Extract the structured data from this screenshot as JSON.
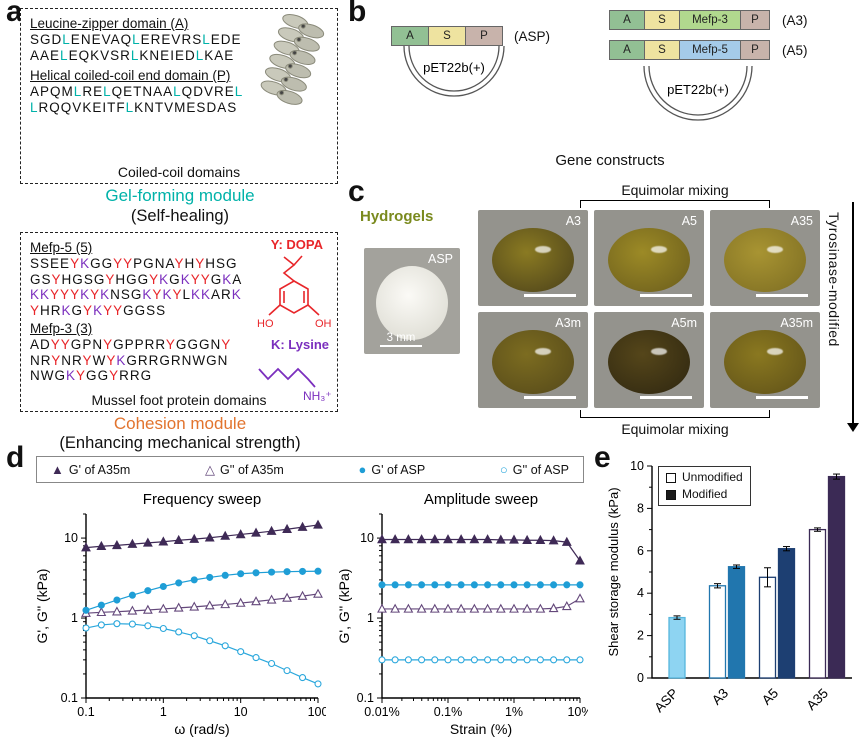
{
  "panel_a": {
    "letter": "a",
    "coiled_box": {
      "domain1_title": "Leucine-zipper domain (A)",
      "domain1_seq": [
        "SGDLENEVAQLEREVRSLEDE",
        "AAELEQKVSRLKNEIEDLKAE"
      ],
      "domain2_title": "Helical coiled-coil end domain (P)",
      "domain2_seq": [
        "APQMLRELQETNAALQDVREL",
        "LRQQVKEITFLKNTVMESDAS"
      ],
      "caption": "Coiled-coil domains"
    },
    "coiled_highlights": {
      "L": "#00b2a9"
    },
    "module1_title": "Gel-forming module",
    "module1_color": "#00b2a9",
    "module1_sub": "(Self-healing)",
    "mussel_box": {
      "mefp5_title": "Mefp-5 (5)",
      "mefp5_seq": [
        "SSEEYKGGYYPGNAYHYHSG",
        "GSYHGSGYHGGYKGKYYGKA",
        "KKYYYKYKNSGKYKYLKKARK",
        "YHRKGYKYYGGSS"
      ],
      "dopa_label": "Y: DOPA",
      "dopa_oh_left": "HO",
      "dopa_oh_right": "OH",
      "mefp3_title": "Mefp-3 (3)",
      "mefp3_seq": [
        "ADYYGPNYGPPRRYGGGNY",
        "NRYNRYWYKGRRGRNWGN",
        "NWGKYGGYRRG"
      ],
      "lysine_label": "K:  Lysine",
      "lysine_formula": "NH₃⁺",
      "caption": "Mussel foot protein domains"
    },
    "mussel_highlights": {
      "Y": "#e8262a",
      "K": "#7b2fbe"
    },
    "module2_title": "Cohesion module",
    "module2_color": "#e2742e",
    "module2_sub": "(Enhancing mechanical strength)"
  },
  "panel_b": {
    "letter": "b",
    "caption": "Gene constructs",
    "asp": {
      "blocks": [
        {
          "text": "A",
          "color": "#92c094",
          "w": 38
        },
        {
          "text": "S",
          "color": "#eee3a0",
          "w": 38
        },
        {
          "text": "P",
          "color": "#c8b3ab",
          "w": 38
        }
      ],
      "name": "(ASP)",
      "plasmid": "pET22b(+)"
    },
    "a3": {
      "blocks": [
        {
          "text": "A",
          "color": "#92c094",
          "w": 36
        },
        {
          "text": "S",
          "color": "#eee3a0",
          "w": 36
        },
        {
          "text": "Mefp-3",
          "color": "#b1d88e",
          "w": 62
        },
        {
          "text": "P",
          "color": "#c8b3ab",
          "w": 30
        }
      ],
      "name": "(A3)"
    },
    "a5": {
      "blocks": [
        {
          "text": "A",
          "color": "#92c094",
          "w": 36
        },
        {
          "text": "S",
          "color": "#eee3a0",
          "w": 36
        },
        {
          "text": "Mefp-5",
          "color": "#a5cbe9",
          "w": 62
        },
        {
          "text": "P",
          "color": "#c8b3ab",
          "w": 30
        }
      ],
      "name": "(A5)"
    },
    "plasmid2": "pET22b(+)"
  },
  "panel_c": {
    "letter": "c",
    "title": "Hydrogels",
    "title_color": "#7a8a1e",
    "equimolar_top": "Equimolar mixing",
    "equimolar_bottom": "Equimolar mixing",
    "tyrosinase_label": "Tyrosinase-modified",
    "asp_photo": {
      "label": "ASP",
      "scale": "3 mm"
    },
    "gels": [
      {
        "label": "A3",
        "c1": "#8a7a22",
        "c2": "#4a401a"
      },
      {
        "label": "A5",
        "c1": "#9c8a26",
        "c2": "#6a5c1c"
      },
      {
        "label": "A35",
        "c1": "#a89432",
        "c2": "#7c6c22"
      },
      {
        "label": "A3m",
        "c1": "#7c6c20",
        "c2": "#54481a"
      },
      {
        "label": "A5m",
        "c1": "#55461a",
        "c2": "#2e2610"
      },
      {
        "label": "A35m",
        "c1": "#8a7820",
        "c2": "#5e5018"
      }
    ]
  },
  "panel_d": {
    "letter": "d",
    "legend": [
      {
        "label": "G' of A35m",
        "marker": "triangle-filled",
        "color": "#3f2a56"
      },
      {
        "label": "G'' of A35m",
        "marker": "triangle-open",
        "color": "#64487b"
      },
      {
        "label": "G' of ASP",
        "marker": "circle-filled",
        "color": "#1f9ed6"
      },
      {
        "label": "G'' of ASP",
        "marker": "circle-open",
        "color": "#2aa7dc"
      }
    ]
  },
  "panel_e": {
    "letter": "e",
    "legend": [
      {
        "label": "Unmodified",
        "filled": false
      },
      {
        "label": "Modified",
        "filled": true
      }
    ]
  },
  "chart_data": [
    {
      "id": "frequency_sweep",
      "type": "line",
      "title": "Frequency sweep",
      "xlabel": "ω (rad/s)",
      "ylabel": "G', G'' (kPa)",
      "xscale": "log",
      "yscale": "log",
      "xlim": [
        0.1,
        100
      ],
      "ylim": [
        0.1,
        20
      ],
      "xticks": [
        {
          "v": 0.1,
          "t": "0.1"
        },
        {
          "v": 1,
          "t": "1"
        },
        {
          "v": 10,
          "t": "10"
        },
        {
          "v": 100,
          "t": "100"
        }
      ],
      "yticks": [
        {
          "v": 0.1,
          "t": "0.1"
        },
        {
          "v": 1,
          "t": "1"
        },
        {
          "v": 10,
          "t": "10"
        }
      ],
      "series": [
        {
          "name": "G' of A35m",
          "marker": "triangle-filled",
          "color": "#3f2a56",
          "x": [
            0.1,
            0.158,
            0.251,
            0.398,
            0.631,
            1,
            1.58,
            2.51,
            3.98,
            6.31,
            10,
            15.8,
            25.1,
            39.8,
            63.1,
            100
          ],
          "y": [
            7.6,
            7.9,
            8.1,
            8.4,
            8.7,
            9.0,
            9.4,
            9.7,
            10.1,
            10.6,
            11.1,
            11.6,
            12.2,
            12.9,
            13.7,
            14.6
          ]
        },
        {
          "name": "G'' of A35m",
          "marker": "triangle-open",
          "color": "#64487b",
          "x": [
            0.1,
            0.158,
            0.251,
            0.398,
            0.631,
            1,
            1.58,
            2.51,
            3.98,
            6.31,
            10,
            15.8,
            25.1,
            39.8,
            63.1,
            100
          ],
          "y": [
            1.15,
            1.18,
            1.2,
            1.23,
            1.26,
            1.3,
            1.34,
            1.38,
            1.43,
            1.48,
            1.54,
            1.61,
            1.69,
            1.78,
            1.88,
            2.0
          ]
        },
        {
          "name": "G' of ASP",
          "marker": "circle-filled",
          "color": "#1f9ed6",
          "x": [
            0.1,
            0.158,
            0.251,
            0.398,
            0.631,
            1,
            1.58,
            2.51,
            3.98,
            6.31,
            10,
            15.8,
            25.1,
            39.8,
            63.1,
            100
          ],
          "y": [
            1.25,
            1.45,
            1.68,
            1.93,
            2.2,
            2.48,
            2.75,
            3.0,
            3.22,
            3.42,
            3.58,
            3.68,
            3.75,
            3.8,
            3.83,
            3.85
          ]
        },
        {
          "name": "G'' of ASP",
          "marker": "circle-open",
          "color": "#2aa7dc",
          "x": [
            0.1,
            0.158,
            0.251,
            0.398,
            0.631,
            1,
            1.58,
            2.51,
            3.98,
            6.31,
            10,
            15.8,
            25.1,
            39.8,
            63.1,
            100
          ],
          "y": [
            0.75,
            0.82,
            0.85,
            0.84,
            0.8,
            0.74,
            0.67,
            0.6,
            0.52,
            0.45,
            0.38,
            0.32,
            0.27,
            0.22,
            0.18,
            0.15
          ]
        }
      ]
    },
    {
      "id": "amplitude_sweep",
      "type": "line",
      "title": "Amplitude sweep",
      "xlabel": "Strain (%)",
      "ylabel": "G', G'' (kPa)",
      "xscale": "log",
      "yscale": "log",
      "xlim": [
        0.01,
        10
      ],
      "ylim": [
        0.1,
        20
      ],
      "xticks": [
        {
          "v": 0.01,
          "t": "0.01%"
        },
        {
          "v": 0.1,
          "t": "0.1%"
        },
        {
          "v": 1,
          "t": "1%"
        },
        {
          "v": 10,
          "t": "10%"
        }
      ],
      "yticks": [
        {
          "v": 0.1,
          "t": "0.1"
        },
        {
          "v": 1,
          "t": "1"
        },
        {
          "v": 10,
          "t": "10"
        }
      ],
      "series": [
        {
          "name": "G' of A35m",
          "marker": "triangle-filled",
          "color": "#3f2a56",
          "x": [
            0.01,
            0.0158,
            0.0251,
            0.0398,
            0.0631,
            0.1,
            0.158,
            0.251,
            0.398,
            0.631,
            1,
            1.58,
            2.51,
            3.98,
            6.31,
            10
          ],
          "y": [
            9.6,
            9.6,
            9.6,
            9.6,
            9.6,
            9.6,
            9.6,
            9.6,
            9.6,
            9.5,
            9.5,
            9.4,
            9.4,
            9.3,
            8.9,
            5.2
          ]
        },
        {
          "name": "G'' of A35m",
          "marker": "triangle-open",
          "color": "#64487b",
          "x": [
            0.01,
            0.0158,
            0.0251,
            0.0398,
            0.0631,
            0.1,
            0.158,
            0.251,
            0.398,
            0.631,
            1,
            1.58,
            2.51,
            3.98,
            6.31,
            10
          ],
          "y": [
            1.3,
            1.3,
            1.3,
            1.3,
            1.3,
            1.3,
            1.3,
            1.3,
            1.3,
            1.3,
            1.3,
            1.3,
            1.3,
            1.32,
            1.4,
            1.75
          ]
        },
        {
          "name": "G' of ASP",
          "marker": "circle-filled",
          "color": "#1f9ed6",
          "x": [
            0.01,
            0.0158,
            0.0251,
            0.0398,
            0.0631,
            0.1,
            0.158,
            0.251,
            0.398,
            0.631,
            1,
            1.58,
            2.51,
            3.98,
            6.31,
            10
          ],
          "y": [
            2.6,
            2.6,
            2.6,
            2.6,
            2.6,
            2.6,
            2.6,
            2.6,
            2.6,
            2.6,
            2.6,
            2.6,
            2.6,
            2.6,
            2.6,
            2.6
          ]
        },
        {
          "name": "G'' of ASP",
          "marker": "circle-open",
          "color": "#2aa7dc",
          "x": [
            0.01,
            0.0158,
            0.0251,
            0.0398,
            0.0631,
            0.1,
            0.158,
            0.251,
            0.398,
            0.631,
            1,
            1.58,
            2.51,
            3.98,
            6.31,
            10
          ],
          "y": [
            0.3,
            0.3,
            0.3,
            0.3,
            0.3,
            0.3,
            0.3,
            0.3,
            0.3,
            0.3,
            0.3,
            0.3,
            0.3,
            0.3,
            0.3,
            0.3
          ]
        }
      ]
    },
    {
      "id": "storage_modulus_bars",
      "type": "bar",
      "ylabel": "Shear storage modulus (kPa)",
      "ylim": [
        0,
        10
      ],
      "yticks": [
        0,
        2,
        4,
        6,
        8,
        10
      ],
      "legend": [
        "Unmodified",
        "Modified"
      ],
      "categories": [
        "ASP",
        "A3",
        "A5",
        "A35"
      ],
      "groups": [
        {
          "category": "ASP",
          "bars": [
            {
              "series": "Unmodified",
              "value": 2.85,
              "error": 0.08,
              "fill": "#8ed4f2",
              "stroke": "#56b6dd"
            }
          ]
        },
        {
          "category": "A3",
          "bars": [
            {
              "series": "Unmodified",
              "value": 4.35,
              "error": 0.1,
              "fill": "#ffffff",
              "stroke": "#2176ae"
            },
            {
              "series": "Modified",
              "value": 5.25,
              "error": 0.08,
              "fill": "#2176ae",
              "stroke": "#2176ae"
            }
          ]
        },
        {
          "category": "A5",
          "bars": [
            {
              "series": "Unmodified",
              "value": 4.75,
              "error": 0.45,
              "fill": "#ffffff",
              "stroke": "#1d3f72"
            },
            {
              "series": "Modified",
              "value": 6.1,
              "error": 0.1,
              "fill": "#1d3f72",
              "stroke": "#1d3f72"
            }
          ]
        },
        {
          "category": "A35",
          "bars": [
            {
              "series": "Unmodified",
              "value": 7.0,
              "error": 0.08,
              "fill": "#ffffff",
              "stroke": "#3b2a55"
            },
            {
              "series": "Modified",
              "value": 9.5,
              "error": 0.12,
              "fill": "#3b2a55",
              "stroke": "#3b2a55"
            }
          ]
        }
      ]
    }
  ]
}
